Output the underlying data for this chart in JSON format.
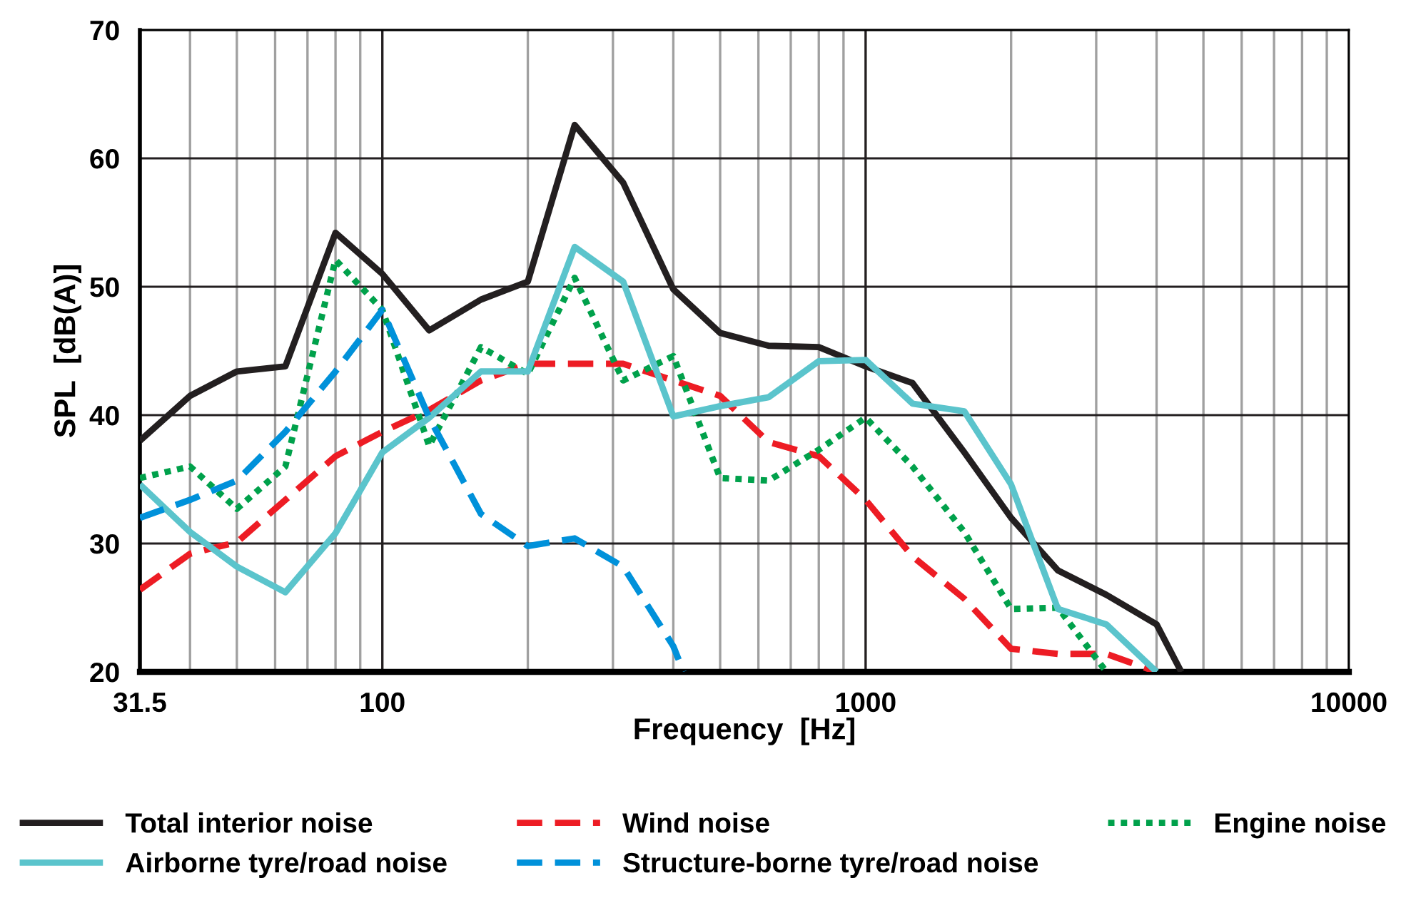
{
  "chart_data": {
    "type": "line",
    "xlabel": "Frequency  [Hz]",
    "ylabel": "SPL  [dB(A)]",
    "log": "x",
    "grid": true,
    "legend": "bottom",
    "marker": "none",
    "xlim": [
      31.5,
      10000
    ],
    "ylim": [
      20,
      70
    ],
    "xticks": [
      31.5,
      {
        "value": 40,
        "label": null
      },
      {
        "value": 50,
        "label": null
      },
      {
        "value": 60,
        "label": null
      },
      {
        "value": 70,
        "label": null
      },
      {
        "value": 80,
        "label": null
      },
      {
        "value": 90,
        "label": null
      },
      100,
      {
        "value": 200,
        "label": null
      },
      {
        "value": 300,
        "label": null
      },
      {
        "value": 400,
        "label": null
      },
      {
        "value": 500,
        "label": null
      },
      {
        "value": 600,
        "label": null
      },
      {
        "value": 700,
        "label": null
      },
      {
        "value": 800,
        "label": null
      },
      {
        "value": 900,
        "label": null
      },
      1000,
      {
        "value": 2000,
        "label": null
      },
      {
        "value": 3000,
        "label": null
      },
      {
        "value": 4000,
        "label": null
      },
      {
        "value": 5000,
        "label": null
      },
      {
        "value": 6000,
        "label": null
      },
      {
        "value": 7000,
        "label": null
      },
      {
        "value": 8000,
        "label": null
      },
      {
        "value": 9000,
        "label": null
      },
      10000
    ],
    "yticks": [
      20,
      30,
      40,
      50,
      60,
      70
    ],
    "series": [
      {
        "name": "Total interior noise",
        "color": "#231f20",
        "line_style": "solid",
        "x": [
          31.5,
          40,
          50,
          63,
          80,
          100,
          125,
          160,
          200,
          250,
          315,
          400,
          500,
          630,
          800,
          1000,
          1250,
          1600,
          2000,
          2500,
          3150,
          4000,
          4500
        ],
        "values": [
          38,
          41.5,
          43.4,
          43.8,
          54.2,
          51,
          46.6,
          49,
          50.4,
          62.6,
          58.1,
          49.8,
          46.4,
          45.4,
          45.3,
          43.8,
          42.5,
          37.1,
          32,
          27.9,
          26,
          23.7,
          20
        ]
      },
      {
        "name": "Wind noise",
        "color": "#ed1c24",
        "line_style": "dashed",
        "x": [
          31.5,
          40,
          50,
          63,
          80,
          100,
          125,
          160,
          200,
          250,
          315,
          400,
          500,
          630,
          800,
          1000,
          1250,
          1600,
          2000,
          2500,
          3150,
          4000
        ],
        "values": [
          26.4,
          29.2,
          30.1,
          33.4,
          36.8,
          38.7,
          40.4,
          42.7,
          44,
          44,
          44,
          42.7,
          41.5,
          37.9,
          36.8,
          33.4,
          29,
          25.7,
          21.8,
          21.4,
          21.4,
          20
        ]
      },
      {
        "name": "Engine noise",
        "color": "#00a14b",
        "line_style": "dotted",
        "x": [
          31.5,
          40,
          50,
          63,
          80,
          100,
          125,
          160,
          200,
          250,
          315,
          400,
          500,
          630,
          800,
          1000,
          1250,
          1600,
          2000,
          2500,
          3150
        ],
        "values": [
          35.1,
          36,
          32.7,
          36,
          52.1,
          48.2,
          37.6,
          45.3,
          43.2,
          50.7,
          42.7,
          44.6,
          35.1,
          34.9,
          37.3,
          39.8,
          36,
          30.9,
          24.9,
          25,
          20
        ]
      },
      {
        "name": "Airborne tyre/road noise",
        "color": "#5bc4cc",
        "line_style": "solid",
        "x": [
          31.5,
          40,
          50,
          63,
          80,
          100,
          125,
          160,
          200,
          250,
          315,
          400,
          500,
          630,
          800,
          1000,
          1250,
          1600,
          2000,
          2500,
          3150,
          4000
        ],
        "values": [
          34.6,
          30.9,
          28.2,
          26.2,
          30.8,
          37.1,
          39.8,
          43.4,
          43.4,
          53.1,
          50.4,
          39.9,
          40.7,
          41.4,
          44.2,
          44.3,
          40.9,
          40.3,
          34.6,
          24.9,
          23.7,
          20
        ]
      },
      {
        "name": "Structure-borne tyre/road noise",
        "color": "#0091da",
        "line_style": "dashed",
        "x": [
          31.5,
          40,
          50,
          63,
          80,
          100,
          125,
          160,
          200,
          250,
          315,
          400,
          420
        ],
        "values": [
          32,
          33.4,
          34.9,
          38.7,
          43.4,
          48.2,
          39.8,
          32.3,
          29.8,
          30.4,
          28.2,
          22,
          20
        ]
      }
    ]
  }
}
